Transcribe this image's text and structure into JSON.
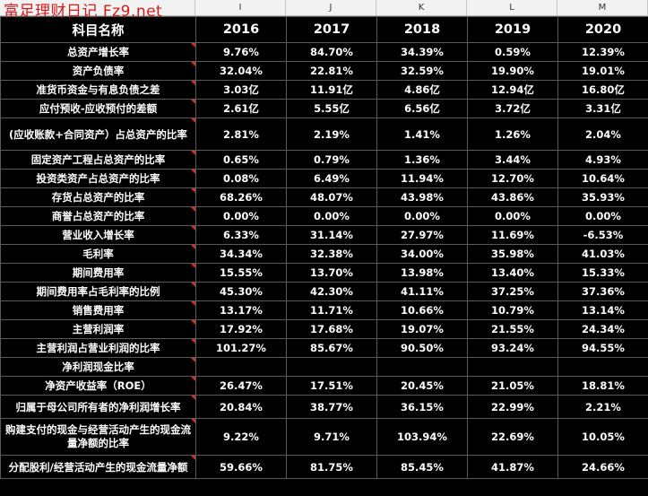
{
  "watermark": "富足理财日记 Fz9.net",
  "columns": {
    "col_i": "I",
    "col_j": "J",
    "col_k": "K",
    "col_l": "L",
    "col_m": "M"
  },
  "header": {
    "label": "科目名称",
    "y2016": "2016",
    "y2017": "2017",
    "y2018": "2018",
    "y2019": "2019",
    "y2020": "2020"
  },
  "rows": [
    {
      "label": "总资产增长率",
      "v": [
        "9.76%",
        "84.70%",
        "34.39%",
        "0.59%",
        "12.39%"
      ]
    },
    {
      "label": "资产负债率",
      "v": [
        "32.04%",
        "22.81%",
        "32.59%",
        "19.90%",
        "19.01%"
      ]
    },
    {
      "label": "准货币资金与有息负债之差",
      "v": [
        "3.03亿",
        "11.91亿",
        "4.86亿",
        "12.94亿",
        "16.80亿"
      ]
    },
    {
      "label": "应付预收-应收预付的差额",
      "v": [
        "2.61亿",
        "5.55亿",
        "6.56亿",
        "3.72亿",
        "3.31亿"
      ]
    },
    {
      "label": "(应收账款+合同资产）占总资产的比率",
      "v": [
        "2.81%",
        "2.19%",
        "1.41%",
        "1.26%",
        "2.04%"
      ]
    },
    {
      "label": "固定资产工程占总资产的比率",
      "v": [
        "0.65%",
        "0.79%",
        "1.36%",
        "3.44%",
        "4.93%"
      ]
    },
    {
      "label": "投资类资产占总资产的比率",
      "v": [
        "0.08%",
        "6.49%",
        "11.94%",
        "12.70%",
        "10.64%"
      ]
    },
    {
      "label": "存货占总资产的比率",
      "v": [
        "68.26%",
        "48.07%",
        "43.98%",
        "43.86%",
        "35.93%"
      ]
    },
    {
      "label": "商誉占总资产的比率",
      "v": [
        "0.00%",
        "0.00%",
        "0.00%",
        "0.00%",
        "0.00%"
      ]
    },
    {
      "label": "营业收入增长率",
      "v": [
        "6.33%",
        "31.14%",
        "27.97%",
        "11.69%",
        "-6.53%"
      ]
    },
    {
      "label": "毛利率",
      "v": [
        "34.34%",
        "32.38%",
        "34.00%",
        "35.98%",
        "41.03%"
      ]
    },
    {
      "label": "期间费用率",
      "v": [
        "15.55%",
        "13.70%",
        "13.98%",
        "13.40%",
        "15.33%"
      ]
    },
    {
      "label": "期间费用率占毛利率的比例",
      "v": [
        "45.30%",
        "42.30%",
        "41.11%",
        "37.25%",
        "37.36%"
      ]
    },
    {
      "label": "销售费用率",
      "v": [
        "13.17%",
        "11.71%",
        "10.66%",
        "10.79%",
        "13.14%"
      ]
    },
    {
      "label": "主营利润率",
      "v": [
        "17.92%",
        "17.68%",
        "19.07%",
        "21.55%",
        "24.34%"
      ]
    },
    {
      "label": "主营利润占营业利润的比率",
      "v": [
        "101.27%",
        "85.67%",
        "90.50%",
        "93.24%",
        "94.55%"
      ]
    },
    {
      "label": "净利润现金比率",
      "v": [
        "",
        "",
        "",
        "",
        ""
      ]
    },
    {
      "label": "净资产收益率（ROE）",
      "v": [
        "26.47%",
        "17.51%",
        "20.45%",
        "21.05%",
        "18.81%"
      ]
    },
    {
      "label": "归属于母公司所有者的净利润增长率",
      "v": [
        "20.84%",
        "38.77%",
        "36.15%",
        "22.99%",
        "2.21%"
      ]
    },
    {
      "label": "购建支付的现金与经营活动产生的现金流量净额的比率",
      "v": [
        "9.22%",
        "9.71%",
        "103.94%",
        "22.69%",
        "10.05%"
      ]
    },
    {
      "label": "分配股利/经营活动产生的现金流量净额",
      "v": [
        "59.66%",
        "81.75%",
        "85.45%",
        "41.87%",
        "24.66%"
      ]
    }
  ]
}
